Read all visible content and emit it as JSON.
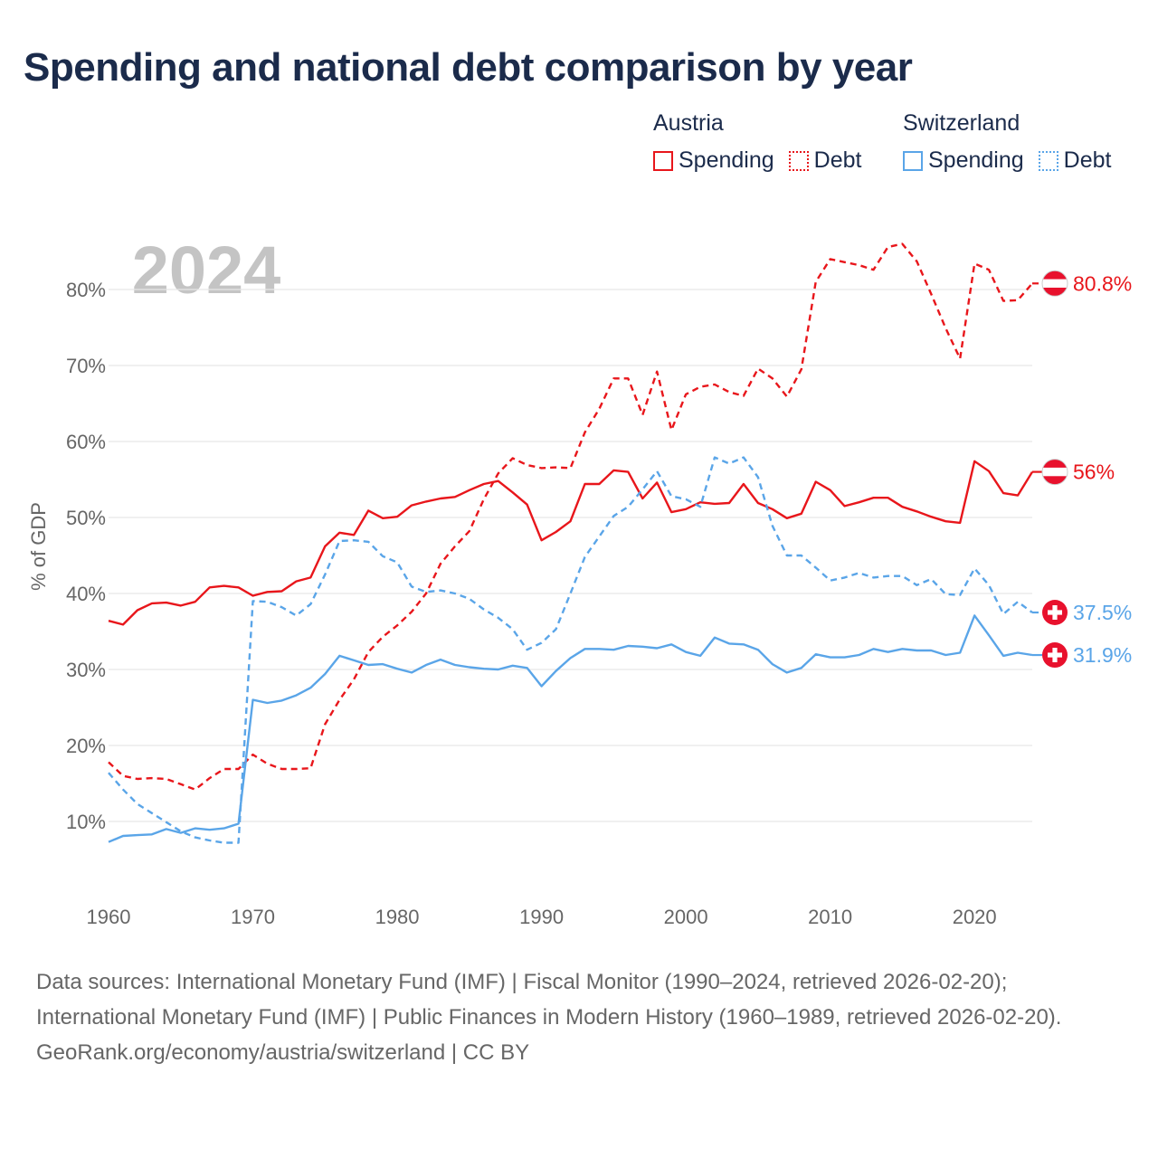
{
  "title": "Spending and national debt comparison by year",
  "legend": {
    "austria": {
      "label": "Austria",
      "spending": "Spending",
      "debt": "Debt"
    },
    "switzerland": {
      "label": "Switzerland",
      "spending": "Spending",
      "debt": "Debt"
    }
  },
  "colors": {
    "austria": "#e8161b",
    "switzerland": "#5aa5e8",
    "year_watermark": "#c4c4c4",
    "grid": "#e6e6e6",
    "axis_text": "#666666"
  },
  "footer": {
    "sources": "Data sources: International Monetary Fund (IMF) | Fiscal Monitor (1990–2024, retrieved 2026-02-20); International Monetary Fund (IMF) | Public Finances in Modern History (1960–1989, retrieved 2026-02-20).",
    "credit": "GeoRank.org/economy/austria/switzerland | CC BY"
  },
  "chart_data": {
    "type": "line",
    "current_year": "2024",
    "ylabel": "% of GDP",
    "xlabel": "",
    "xlim": [
      1960,
      2024
    ],
    "ylim": [
      0,
      90
    ],
    "x_ticks": [
      1960,
      1970,
      1980,
      1990,
      2000,
      2010,
      2020
    ],
    "y_ticks": [
      10,
      20,
      30,
      40,
      50,
      60,
      70,
      80
    ],
    "y_tick_labels": [
      "10%",
      "20%",
      "30%",
      "40%",
      "50%",
      "60%",
      "70%",
      "80%"
    ],
    "grid": true,
    "legend_position": "top-right",
    "series": [
      {
        "name": "Austria Debt",
        "country": "austria",
        "metric": "debt",
        "style": "dashed",
        "end_label": "80.8%",
        "end_value": 80.8,
        "flag": "austria",
        "points": [
          [
            1960,
            17.8
          ],
          [
            1961,
            16.0
          ],
          [
            1962,
            15.6
          ],
          [
            1963,
            15.7
          ],
          [
            1964,
            15.6
          ],
          [
            1965,
            14.9
          ],
          [
            1966,
            14.2
          ],
          [
            1967,
            15.7
          ],
          [
            1968,
            16.9
          ],
          [
            1969,
            16.9
          ],
          [
            1970,
            18.8
          ],
          [
            1971,
            17.6
          ],
          [
            1972,
            16.9
          ],
          [
            1973,
            16.9
          ],
          [
            1974,
            17.0
          ],
          [
            1975,
            22.8
          ],
          [
            1976,
            26.0
          ],
          [
            1977,
            28.7
          ],
          [
            1978,
            32.3
          ],
          [
            1979,
            34.3
          ],
          [
            1980,
            35.8
          ],
          [
            1981,
            37.6
          ],
          [
            1982,
            40.0
          ],
          [
            1983,
            43.9
          ],
          [
            1984,
            46.2
          ],
          [
            1985,
            48.2
          ],
          [
            1986,
            52.4
          ],
          [
            1987,
            55.8
          ],
          [
            1988,
            57.8
          ],
          [
            1989,
            56.9
          ],
          [
            1990,
            56.5
          ],
          [
            1991,
            56.6
          ],
          [
            1992,
            56.5
          ],
          [
            1993,
            61.2
          ],
          [
            1994,
            64.3
          ],
          [
            1995,
            68.3
          ],
          [
            1996,
            68.3
          ],
          [
            1997,
            63.5
          ],
          [
            1998,
            69.2
          ],
          [
            1999,
            61.5
          ],
          [
            2000,
            66.2
          ],
          [
            2001,
            67.2
          ],
          [
            2002,
            67.5
          ],
          [
            2003,
            66.5
          ],
          [
            2004,
            66.0
          ],
          [
            2005,
            69.6
          ],
          [
            2006,
            68.3
          ],
          [
            2007,
            65.9
          ],
          [
            2008,
            69.5
          ],
          [
            2009,
            81.0
          ],
          [
            2010,
            84.0
          ],
          [
            2011,
            83.6
          ],
          [
            2012,
            83.2
          ],
          [
            2013,
            82.6
          ],
          [
            2014,
            85.6
          ],
          [
            2015,
            86.0
          ],
          [
            2016,
            83.7
          ],
          [
            2017,
            79.4
          ],
          [
            2018,
            74.9
          ],
          [
            2019,
            70.9
          ],
          [
            2020,
            83.4
          ],
          [
            2021,
            82.6
          ],
          [
            2022,
            78.5
          ],
          [
            2023,
            78.6
          ],
          [
            2024,
            80.8
          ]
        ]
      },
      {
        "name": "Austria Spending",
        "country": "austria",
        "metric": "spending",
        "style": "solid",
        "end_label": "56%",
        "end_value": 56.0,
        "flag": "austria",
        "points": [
          [
            1960,
            36.4
          ],
          [
            1961,
            35.9
          ],
          [
            1962,
            37.8
          ],
          [
            1963,
            38.7
          ],
          [
            1964,
            38.8
          ],
          [
            1965,
            38.4
          ],
          [
            1966,
            38.9
          ],
          [
            1967,
            40.8
          ],
          [
            1968,
            41.0
          ],
          [
            1969,
            40.8
          ],
          [
            1970,
            39.7
          ],
          [
            1971,
            40.2
          ],
          [
            1972,
            40.3
          ],
          [
            1973,
            41.6
          ],
          [
            1974,
            42.1
          ],
          [
            1975,
            46.2
          ],
          [
            1976,
            48.0
          ],
          [
            1977,
            47.7
          ],
          [
            1978,
            50.9
          ],
          [
            1979,
            49.9
          ],
          [
            1980,
            50.1
          ],
          [
            1981,
            51.6
          ],
          [
            1982,
            52.1
          ],
          [
            1983,
            52.5
          ],
          [
            1984,
            52.7
          ],
          [
            1985,
            53.6
          ],
          [
            1986,
            54.4
          ],
          [
            1987,
            54.8
          ],
          [
            1988,
            53.3
          ],
          [
            1989,
            51.7
          ],
          [
            1990,
            47.0
          ],
          [
            1991,
            48.1
          ],
          [
            1992,
            49.5
          ],
          [
            1993,
            54.4
          ],
          [
            1994,
            54.4
          ],
          [
            1995,
            56.2
          ],
          [
            1996,
            56.0
          ],
          [
            1997,
            52.5
          ],
          [
            1998,
            54.6
          ],
          [
            1999,
            50.7
          ],
          [
            2000,
            51.1
          ],
          [
            2001,
            52.0
          ],
          [
            2002,
            51.8
          ],
          [
            2003,
            51.9
          ],
          [
            2004,
            54.4
          ],
          [
            2005,
            51.9
          ],
          [
            2006,
            51.1
          ],
          [
            2007,
            49.9
          ],
          [
            2008,
            50.5
          ],
          [
            2009,
            54.7
          ],
          [
            2010,
            53.6
          ],
          [
            2011,
            51.5
          ],
          [
            2012,
            52.0
          ],
          [
            2013,
            52.6
          ],
          [
            2014,
            52.6
          ],
          [
            2015,
            51.4
          ],
          [
            2016,
            50.8
          ],
          [
            2017,
            50.1
          ],
          [
            2018,
            49.5
          ],
          [
            2019,
            49.3
          ],
          [
            2020,
            57.4
          ],
          [
            2021,
            56.1
          ],
          [
            2022,
            53.2
          ],
          [
            2023,
            52.9
          ],
          [
            2024,
            56.0
          ]
        ]
      },
      {
        "name": "Switzerland Debt",
        "country": "switzerland",
        "metric": "debt",
        "style": "dashed",
        "end_label": "37.5%",
        "end_value": 37.5,
        "flag": "switzerland",
        "points": [
          [
            1960,
            16.4
          ],
          [
            1961,
            14.2
          ],
          [
            1962,
            12.3
          ],
          [
            1963,
            11.1
          ],
          [
            1964,
            9.9
          ],
          [
            1965,
            8.7
          ],
          [
            1966,
            7.9
          ],
          [
            1967,
            7.5
          ],
          [
            1968,
            7.2
          ],
          [
            1969,
            7.2
          ],
          [
            1970,
            39.0
          ],
          [
            1971,
            38.9
          ],
          [
            1972,
            38.2
          ],
          [
            1973,
            37.1
          ],
          [
            1974,
            38.6
          ],
          [
            1975,
            42.5
          ],
          [
            1976,
            46.9
          ],
          [
            1977,
            47.0
          ],
          [
            1978,
            46.8
          ],
          [
            1979,
            44.9
          ],
          [
            1980,
            44.1
          ],
          [
            1981,
            40.9
          ],
          [
            1982,
            40.2
          ],
          [
            1983,
            40.4
          ],
          [
            1984,
            40.0
          ],
          [
            1985,
            39.3
          ],
          [
            1986,
            37.9
          ],
          [
            1987,
            36.8
          ],
          [
            1988,
            35.3
          ],
          [
            1989,
            32.6
          ],
          [
            1990,
            33.5
          ],
          [
            1991,
            35.3
          ],
          [
            1992,
            40.0
          ],
          [
            1993,
            44.8
          ],
          [
            1994,
            47.5
          ],
          [
            1995,
            50.2
          ],
          [
            1996,
            51.4
          ],
          [
            1997,
            53.7
          ],
          [
            1998,
            56.1
          ],
          [
            1999,
            52.8
          ],
          [
            2000,
            52.4
          ],
          [
            2001,
            51.4
          ],
          [
            2002,
            57.9
          ],
          [
            2003,
            57.1
          ],
          [
            2004,
            57.9
          ],
          [
            2005,
            55.3
          ],
          [
            2006,
            48.9
          ],
          [
            2007,
            45.0
          ],
          [
            2008,
            45.0
          ],
          [
            2009,
            43.4
          ],
          [
            2010,
            41.7
          ],
          [
            2011,
            42.1
          ],
          [
            2012,
            42.7
          ],
          [
            2013,
            42.1
          ],
          [
            2014,
            42.3
          ],
          [
            2015,
            42.3
          ],
          [
            2016,
            41.1
          ],
          [
            2017,
            41.9
          ],
          [
            2018,
            39.9
          ],
          [
            2019,
            39.8
          ],
          [
            2020,
            43.3
          ],
          [
            2021,
            41.1
          ],
          [
            2022,
            37.3
          ],
          [
            2023,
            38.9
          ],
          [
            2024,
            37.5
          ]
        ]
      },
      {
        "name": "Switzerland Spending",
        "country": "switzerland",
        "metric": "spending",
        "style": "solid",
        "end_label": "31.9%",
        "end_value": 31.9,
        "flag": "switzerland",
        "points": [
          [
            1960,
            7.3
          ],
          [
            1961,
            8.1
          ],
          [
            1962,
            8.2
          ],
          [
            1963,
            8.3
          ],
          [
            1964,
            9.0
          ],
          [
            1965,
            8.5
          ],
          [
            1966,
            9.1
          ],
          [
            1967,
            8.9
          ],
          [
            1968,
            9.1
          ],
          [
            1969,
            9.7
          ],
          [
            1970,
            26.0
          ],
          [
            1971,
            25.6
          ],
          [
            1972,
            25.9
          ],
          [
            1973,
            26.6
          ],
          [
            1974,
            27.6
          ],
          [
            1975,
            29.4
          ],
          [
            1976,
            31.8
          ],
          [
            1977,
            31.2
          ],
          [
            1978,
            30.6
          ],
          [
            1979,
            30.7
          ],
          [
            1980,
            30.1
          ],
          [
            1981,
            29.6
          ],
          [
            1982,
            30.6
          ],
          [
            1983,
            31.3
          ],
          [
            1984,
            30.6
          ],
          [
            1985,
            30.3
          ],
          [
            1986,
            30.1
          ],
          [
            1987,
            30.0
          ],
          [
            1988,
            30.5
          ],
          [
            1989,
            30.2
          ],
          [
            1990,
            27.8
          ],
          [
            1991,
            29.8
          ],
          [
            1992,
            31.5
          ],
          [
            1993,
            32.7
          ],
          [
            1994,
            32.7
          ],
          [
            1995,
            32.6
          ],
          [
            1996,
            33.1
          ],
          [
            1997,
            33.0
          ],
          [
            1998,
            32.8
          ],
          [
            1999,
            33.3
          ],
          [
            2000,
            32.3
          ],
          [
            2001,
            31.8
          ],
          [
            2002,
            34.2
          ],
          [
            2003,
            33.4
          ],
          [
            2004,
            33.3
          ],
          [
            2005,
            32.6
          ],
          [
            2006,
            30.7
          ],
          [
            2007,
            29.6
          ],
          [
            2008,
            30.2
          ],
          [
            2009,
            32.0
          ],
          [
            2010,
            31.6
          ],
          [
            2011,
            31.6
          ],
          [
            2012,
            31.9
          ],
          [
            2013,
            32.7
          ],
          [
            2014,
            32.3
          ],
          [
            2015,
            32.7
          ],
          [
            2016,
            32.5
          ],
          [
            2017,
            32.5
          ],
          [
            2018,
            31.9
          ],
          [
            2019,
            32.2
          ],
          [
            2020,
            37.1
          ],
          [
            2021,
            34.5
          ],
          [
            2022,
            31.8
          ],
          [
            2023,
            32.2
          ],
          [
            2024,
            31.9
          ]
        ]
      }
    ]
  }
}
